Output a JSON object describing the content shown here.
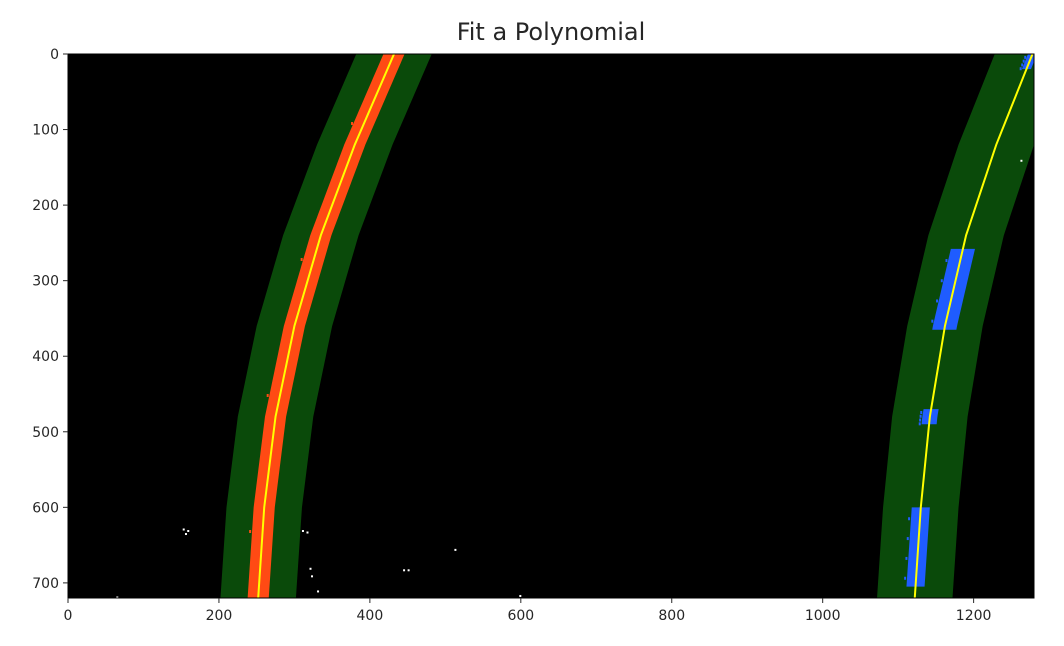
{
  "chart_data": {
    "type": "image",
    "title": "Fit a Polynomial",
    "xlabel": "",
    "ylabel": "",
    "xlim": [
      0,
      1280
    ],
    "ylim": [
      720,
      0
    ],
    "xticks": [
      0,
      200,
      400,
      600,
      800,
      1000,
      1200
    ],
    "yticks": [
      0,
      100,
      200,
      300,
      400,
      500,
      600,
      700
    ],
    "background_color": "#000000",
    "search_margin": 50,
    "colors": {
      "search_band": "#0a4a0a",
      "left_pixels": "#ff4a14",
      "right_pixels": "#1f5cff",
      "fit_line": "#ffff00",
      "noise": "#ffffff"
    },
    "lanes": [
      {
        "name": "left",
        "fit_points": [
          [
            432,
            0
          ],
          [
            380,
            120
          ],
          [
            335,
            240
          ],
          [
            300,
            360
          ],
          [
            275,
            480
          ],
          [
            260,
            600
          ],
          [
            252,
            720
          ]
        ],
        "pixel_segments": [
          [
            0,
            720,
            14
          ]
        ]
      },
      {
        "name": "right",
        "fit_points": [
          [
            1278,
            0
          ],
          [
            1230,
            120
          ],
          [
            1190,
            240
          ],
          [
            1162,
            360
          ],
          [
            1142,
            480
          ],
          [
            1130,
            600
          ],
          [
            1122,
            720
          ]
        ],
        "pixel_segments": [
          [
            0,
            20,
            6
          ],
          [
            258,
            365,
            16
          ],
          [
            470,
            490,
            10
          ],
          [
            600,
            705,
            12
          ]
        ]
      }
    ],
    "noise_points": [
      [
        152,
        628
      ],
      [
        158,
        630
      ],
      [
        155,
        634
      ],
      [
        310,
        630
      ],
      [
        316,
        632
      ],
      [
        320,
        680
      ],
      [
        322,
        690
      ],
      [
        330,
        710
      ],
      [
        444,
        682
      ],
      [
        450,
        682
      ],
      [
        512,
        655
      ],
      [
        598,
        716
      ],
      [
        64,
        718
      ],
      [
        1262,
        140
      ]
    ]
  }
}
